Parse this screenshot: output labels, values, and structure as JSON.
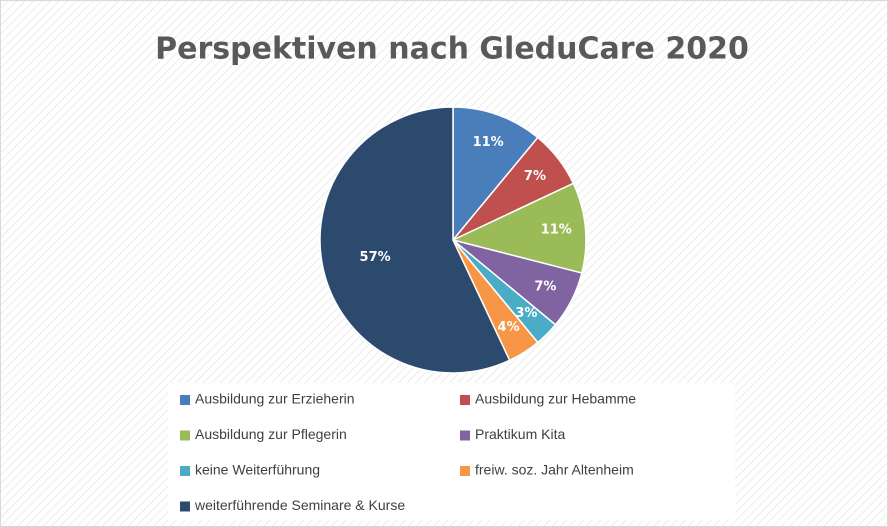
{
  "chart_data": {
    "type": "pie",
    "title": "Perspektiven nach GleduCare 2020",
    "categories": [
      "Ausbildung zur Erzieherin",
      "Ausbildung zur Hebamme",
      "Ausbildung zur Pflegerin",
      "Praktikum Kita",
      "keine Weiterführung",
      "freiw. soz. Jahr Altenheim",
      "weiterführende Seminare & Kurse"
    ],
    "values": [
      11,
      7,
      11,
      7,
      3,
      4,
      57
    ],
    "value_labels": [
      "11%",
      "7%",
      "11%",
      "7%",
      "3%",
      "4%",
      "57%"
    ],
    "colors": [
      "#4a7ebb",
      "#c0504d",
      "#9bbb59",
      "#8064a2",
      "#4bacc6",
      "#f79646",
      "#2c4a6e"
    ],
    "legend": "bottom"
  }
}
